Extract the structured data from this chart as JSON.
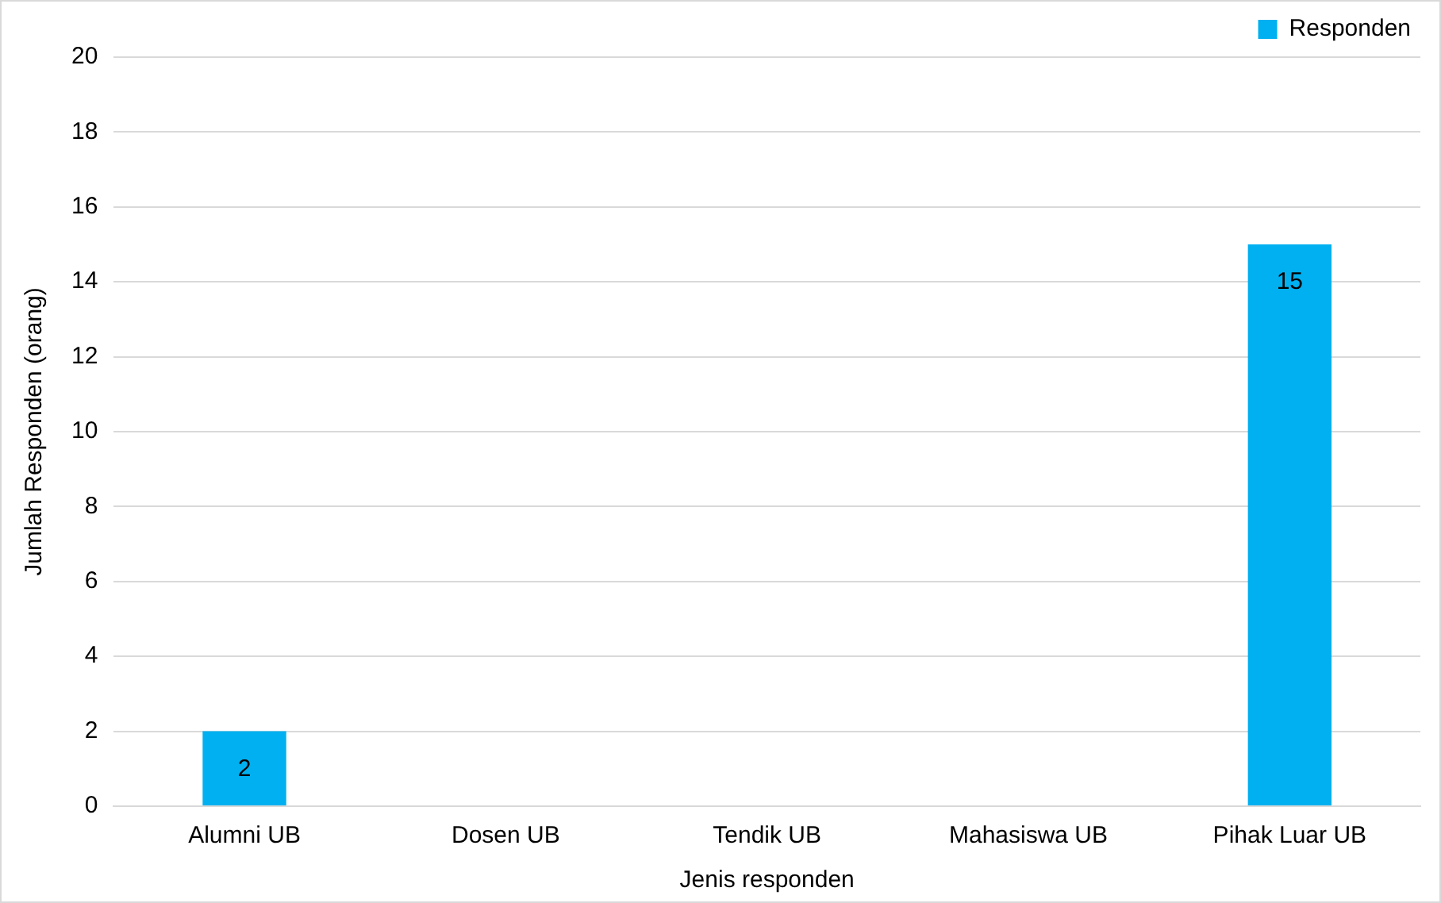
{
  "chart_data": {
    "type": "bar",
    "xlabel": "Jenis responden",
    "ylabel": "Jumlah Responden (orang)",
    "categories": [
      "Alumni UB",
      "Dosen UB",
      "Tendik UB",
      "Mahasiswa UB",
      "Pihak Luar UB"
    ],
    "series": [
      {
        "name": "Responden",
        "color": "#00b0f0",
        "values": [
          2,
          0,
          0,
          0,
          15
        ],
        "value_labels": [
          "2",
          null,
          null,
          null,
          "15"
        ]
      }
    ],
    "ylim": [
      0,
      20
    ],
    "yticks": [
      0,
      2,
      4,
      6,
      8,
      10,
      12,
      14,
      16,
      18,
      20
    ],
    "grid": "y",
    "legend": "top right"
  }
}
